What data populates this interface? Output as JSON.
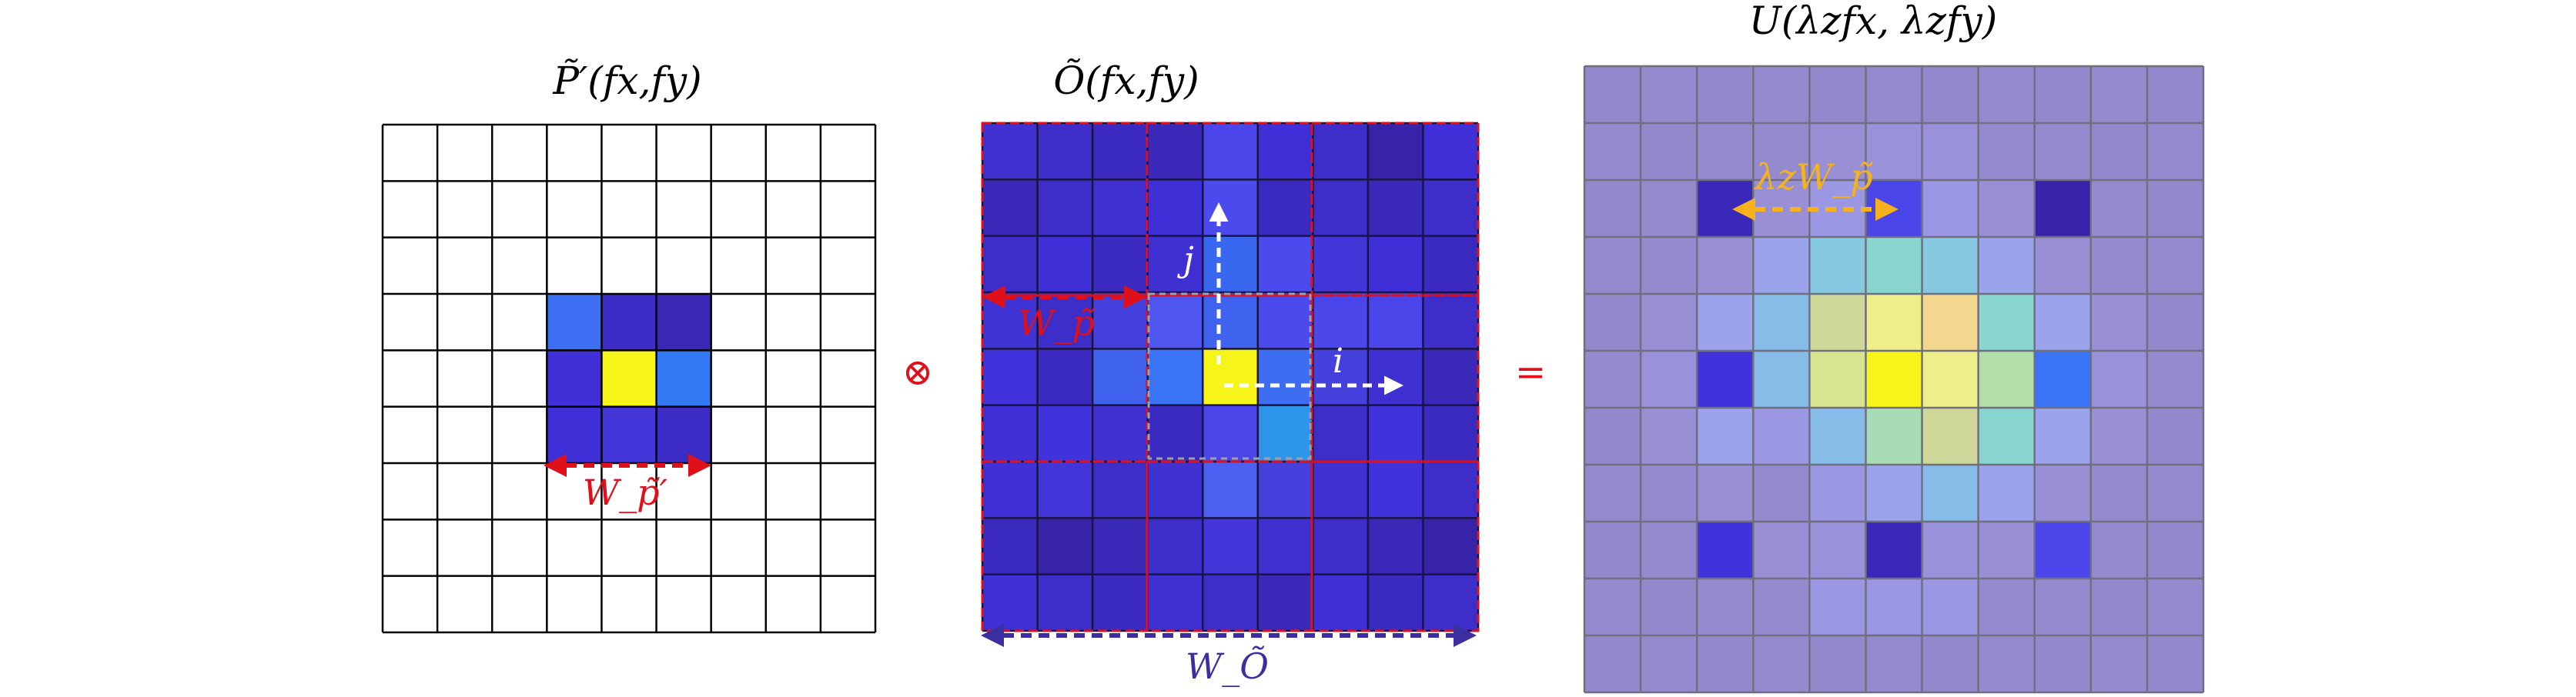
{
  "panels": {
    "pupil": {
      "title": "P̃′(fx,fy)",
      "grid_size": 9,
      "active_block": {
        "row": 3,
        "col": 3,
        "size": 3
      },
      "cell_colors": [
        [
          "#3c6ff2",
          "#3d2cc5",
          "#3a28b6"
        ],
        [
          "#3e30d6",
          "#f7f41a",
          "#3479f4"
        ],
        [
          "#3e30d6",
          "#4236d9",
          "#3d2cc5"
        ]
      ],
      "width_label": "W_p̃′"
    },
    "object": {
      "title": "Õ(fx,fy)",
      "grid_size": 9,
      "cell_colors": [
        [
          "#3f30d2",
          "#3d2dc9",
          "#3b2ac0",
          "#3a28b8",
          "#4a46ea",
          "#3e30d6",
          "#3d2dc9",
          "#3623a8",
          "#3e30d6"
        ],
        [
          "#3a28b8",
          "#3d2dc9",
          "#3f30d2",
          "#3e30d6",
          "#4b4aec",
          "#3b2ac0",
          "#3d2dc9",
          "#3a28b8",
          "#3d2dc9"
        ],
        [
          "#3d2dc9",
          "#3e30d6",
          "#3b2ac0",
          "#3f30d2",
          "#3a67f0",
          "#4b4aec",
          "#4236d9",
          "#3e30d6",
          "#3b2ac0"
        ],
        [
          "#4033d4",
          "#3d2dc9",
          "#4540dc",
          "#4f55ef",
          "#3f63ef",
          "#4b4aec",
          "#4a46ea",
          "#4a46ea",
          "#3d2dc9"
        ],
        [
          "#4133dc",
          "#3b2ac0",
          "#3f63ef",
          "#3a74f4",
          "#f7f41a",
          "#3d6ef1",
          "#4540dc",
          "#3f30d2",
          "#3a28b8"
        ],
        [
          "#3e30d6",
          "#4133dc",
          "#3f30d2",
          "#3b2ac0",
          "#4a46ea",
          "#2d95ec",
          "#3d2dc9",
          "#4133dc",
          "#3b2ac0"
        ],
        [
          "#3e30d6",
          "#4236d9",
          "#3d2dc9",
          "#3f30d2",
          "#4b5ff0",
          "#4540dc",
          "#3f30d2",
          "#4133dc",
          "#3d2dc9"
        ],
        [
          "#3b2ac0",
          "#3623a8",
          "#3a28b8",
          "#3d2dc9",
          "#4236d9",
          "#3f30d2",
          "#3d2dc9",
          "#3a28b8",
          "#3623a8"
        ],
        [
          "#3e30d6",
          "#3d2dc9",
          "#3b2ac0",
          "#3f30d2",
          "#3d2dc9",
          "#3a28b8",
          "#3e30d6",
          "#3b2ac0",
          "#3d2dc9"
        ]
      ],
      "width_label": "W_Õ",
      "patch_width_label": "W_p̃",
      "index_i": "i",
      "index_j": "j"
    },
    "result": {
      "title": "U(λzfx, λzfy)",
      "grid_size": 11,
      "cell_colors": [
        [
          "#9189cc",
          "#948bcf",
          "#9189cc",
          "#948bcf",
          "#9189cc",
          "#948bcf",
          "#9189cc",
          "#948bcf",
          "#9189cc",
          "#948bcf",
          "#9189cc"
        ],
        [
          "#948bcf",
          "#9189cc",
          "#948bcf",
          "#948bcf",
          "#988fd5",
          "#9991d9",
          "#9991d9",
          "#948bcf",
          "#948bcf",
          "#9189cc",
          "#948bcf"
        ],
        [
          "#9189cc",
          "#948bcf",
          "#3a28b8",
          "#988fd5",
          "#9b97e2",
          "#4a46ea",
          "#9b97e2",
          "#988fd5",
          "#3623a8",
          "#948bcf",
          "#9189cc"
        ],
        [
          "#948bcf",
          "#948bcf",
          "#988fd5",
          "#9aa3ec",
          "#86c8e0",
          "#88d6cf",
          "#86c8e0",
          "#9aa3ec",
          "#988fd5",
          "#948bcf",
          "#948bcf"
        ],
        [
          "#9189cc",
          "#988fd5",
          "#9aa3ec",
          "#88bce8",
          "#cfd89a",
          "#eeef8a",
          "#f3d78e",
          "#88d6cf",
          "#9aa3ec",
          "#988fd5",
          "#9189cc"
        ],
        [
          "#948bcf",
          "#9991d9",
          "#4133dc",
          "#88bce8",
          "#d8e48e",
          "#f7f41a",
          "#eeef8a",
          "#b2deaa",
          "#3a74f4",
          "#9991d9",
          "#948bcf"
        ],
        [
          "#9189cc",
          "#988fd5",
          "#9aa3ec",
          "#9b97e2",
          "#88bce8",
          "#a8dcb4",
          "#cfd89a",
          "#88d6cf",
          "#9aa3ec",
          "#988fd5",
          "#9189cc"
        ],
        [
          "#948bcf",
          "#948bcf",
          "#988fd5",
          "#948bcf",
          "#9b97e2",
          "#9aa3ec",
          "#88bce8",
          "#9aa3ec",
          "#988fd5",
          "#948bcf",
          "#948bcf"
        ],
        [
          "#9189cc",
          "#948bcf",
          "#4133dc",
          "#988fd5",
          "#9991d9",
          "#3a28b8",
          "#9991d9",
          "#988fd5",
          "#4a46ea",
          "#948bcf",
          "#9189cc"
        ],
        [
          "#948bcf",
          "#9189cc",
          "#948bcf",
          "#948bcf",
          "#9b97e2",
          "#9b97e2",
          "#9b97e2",
          "#948bcf",
          "#948bcf",
          "#9189cc",
          "#948bcf"
        ],
        [
          "#9189cc",
          "#948bcf",
          "#9189cc",
          "#948bcf",
          "#9189cc",
          "#948bcf",
          "#9189cc",
          "#948bcf",
          "#9189cc",
          "#948bcf",
          "#9189cc"
        ]
      ],
      "arrow_label": "λzW_p̃"
    }
  },
  "operators": {
    "convolution": "⊗",
    "equals": "="
  },
  "colors": {
    "red": "#e0101a",
    "navy": "#3b2ea0",
    "orange": "#f5b21c",
    "white": "#ffffff",
    "grid": "#000000",
    "result_grid": "#6f6f7f"
  }
}
